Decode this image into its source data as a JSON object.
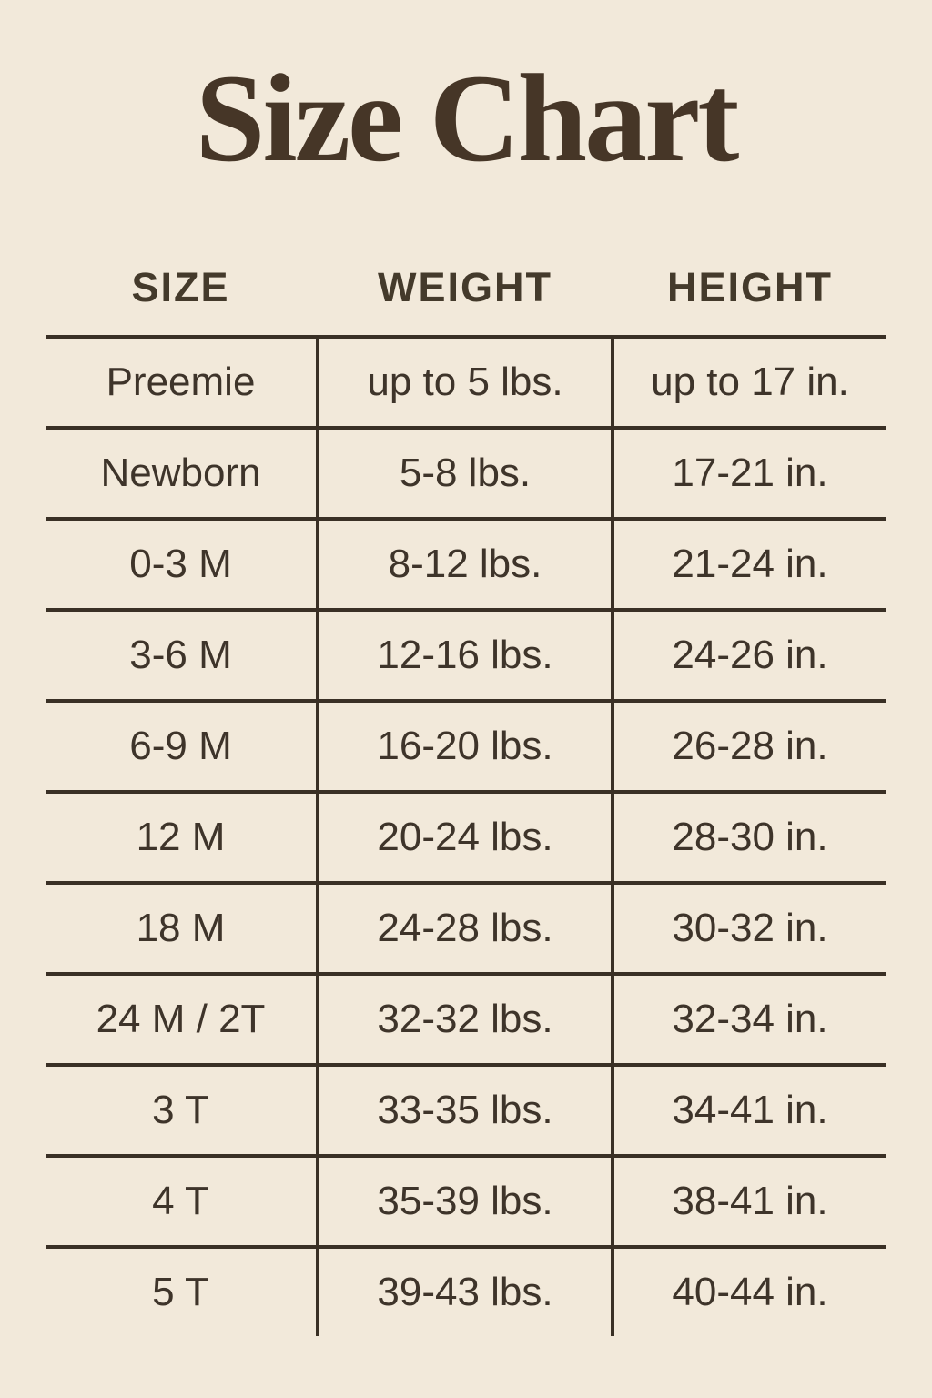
{
  "page": {
    "title": "Size Chart"
  },
  "colors": {
    "background": "#f2e9da",
    "text": "#3e342a",
    "title_text": "#463627",
    "grid_lines": "#3a3025"
  },
  "table": {
    "headers": [
      "SIZE",
      "WEIGHT",
      "HEIGHT"
    ],
    "rows": [
      {
        "size": "Preemie",
        "weight": "up to 5 lbs.",
        "height": "up to 17 in."
      },
      {
        "size": "Newborn",
        "weight": "5-8 lbs.",
        "height": "17-21 in."
      },
      {
        "size": "0-3 M",
        "weight": "8-12 lbs.",
        "height": "21-24 in."
      },
      {
        "size": "3-6 M",
        "weight": "12-16 lbs.",
        "height": "24-26 in."
      },
      {
        "size": "6-9 M",
        "weight": "16-20 lbs.",
        "height": "26-28 in."
      },
      {
        "size": "12 M",
        "weight": "20-24 lbs.",
        "height": "28-30 in."
      },
      {
        "size": "18 M",
        "weight": "24-28 lbs.",
        "height": "30-32 in."
      },
      {
        "size": "24 M / 2T",
        "weight": "32-32 lbs.",
        "height": "32-34 in."
      },
      {
        "size": "3 T",
        "weight": "33-35 lbs.",
        "height": "34-41 in."
      },
      {
        "size": "4 T",
        "weight": "35-39 lbs.",
        "height": "38-41 in."
      },
      {
        "size": "5 T",
        "weight": "39-43 lbs.",
        "height": "40-44 in."
      }
    ]
  },
  "chart_data": {
    "type": "table",
    "title": "Size Chart",
    "columns": [
      "SIZE",
      "WEIGHT",
      "HEIGHT"
    ],
    "rows": [
      [
        "Preemie",
        "up to 5 lbs.",
        "up to 17 in."
      ],
      [
        "Newborn",
        "5-8 lbs.",
        "17-21 in."
      ],
      [
        "0-3 M",
        "8-12 lbs.",
        "21-24 in."
      ],
      [
        "3-6 M",
        "12-16 lbs.",
        "24-26 in."
      ],
      [
        "6-9 M",
        "16-20 lbs.",
        "26-28 in."
      ],
      [
        "12 M",
        "20-24 lbs.",
        "28-30 in."
      ],
      [
        "18 M",
        "24-28 lbs.",
        "30-32 in."
      ],
      [
        "24 M / 2T",
        "32-32 lbs.",
        "32-34 in."
      ],
      [
        "3 T",
        "33-35 lbs.",
        "34-41 in."
      ],
      [
        "4 T",
        "35-39 lbs.",
        "38-41 in."
      ],
      [
        "5 T",
        "39-43 lbs.",
        "40-44 in."
      ]
    ]
  }
}
